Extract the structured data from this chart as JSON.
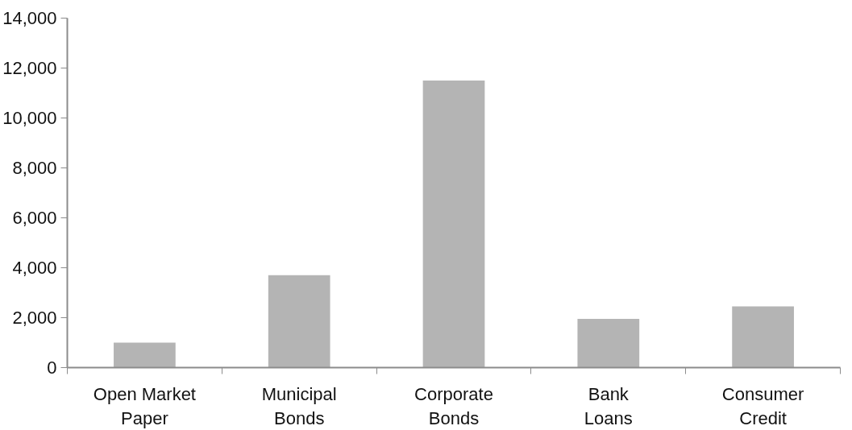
{
  "chart_data": {
    "type": "bar",
    "categories": [
      "Open Market Paper",
      "Municipal Bonds",
      "Corporate Bonds",
      "Bank Loans",
      "Consumer Credit"
    ],
    "values": [
      1000,
      3700,
      11500,
      1950,
      2450
    ],
    "color": "#b4b4b4",
    "ylim": [
      0,
      14000
    ],
    "yticks": [
      {
        "value": 0,
        "label": "0"
      },
      {
        "value": 2000,
        "label": "2,000"
      },
      {
        "value": 4000,
        "label": "4,000"
      },
      {
        "value": 6000,
        "label": "6,000"
      },
      {
        "value": 8000,
        "label": "8,000"
      },
      {
        "value": 10000,
        "label": "10,000"
      },
      {
        "value": 12000,
        "label": "12,000"
      },
      {
        "value": 14000,
        "label": "14,000"
      }
    ],
    "grid": false
  }
}
